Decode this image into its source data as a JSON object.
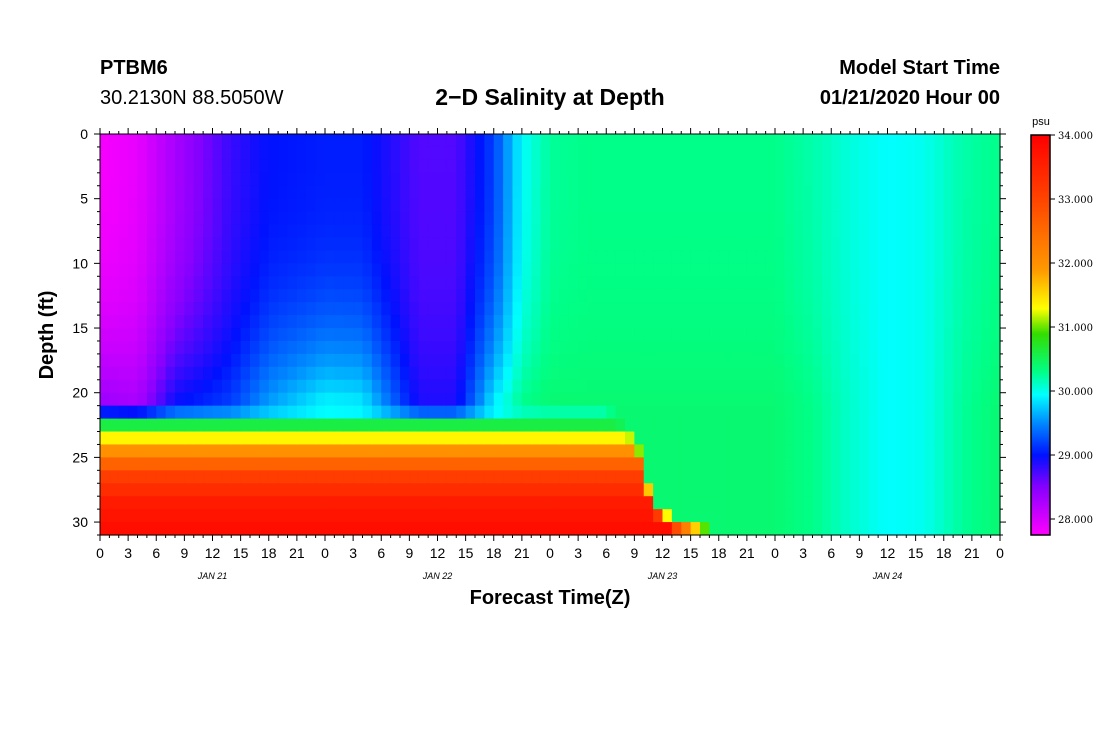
{
  "header": {
    "station": "PTBM6",
    "coordinates": "30.2130N 88.5050W",
    "title": "2−D Salinity at Depth",
    "model_start_label": "Model Start Time",
    "model_start_value": "01/21/2020 Hour 00"
  },
  "chart_data": {
    "type": "heatmap",
    "title": "2−D Salinity at Depth",
    "xlabel": "Forecast Time(Z)",
    "ylabel": "Depth (ft)",
    "x_range_hours": [
      0,
      96
    ],
    "x_tick_labels": [
      "0",
      "3",
      "6",
      "9",
      "12",
      "15",
      "18",
      "21",
      "0",
      "3",
      "6",
      "9",
      "12",
      "15",
      "18",
      "21",
      "0",
      "3",
      "6",
      "9",
      "12",
      "15",
      "18",
      "21",
      "0",
      "3",
      "6",
      "9",
      "12",
      "15",
      "18",
      "21",
      "0"
    ],
    "date_labels": [
      {
        "label": "JAN 21",
        "hour": 12
      },
      {
        "label": "JAN 22",
        "hour": 36
      },
      {
        "label": "JAN 23",
        "hour": 60
      },
      {
        "label": "JAN 24",
        "hour": 84
      }
    ],
    "y_range_ft": [
      0,
      31
    ],
    "y_ticks": [
      0,
      5,
      10,
      15,
      20,
      25,
      30
    ],
    "colorbar": {
      "unit": "psu",
      "range": [
        27.75,
        34.0
      ],
      "tick_labels": [
        "34.000",
        "33.000",
        "32.000",
        "31.000",
        "30.000",
        "29.000",
        "28.000"
      ],
      "tick_values": [
        34,
        33,
        32,
        31,
        30,
        29,
        28
      ],
      "colors": [
        {
          "v": 27.75,
          "c": "#ff00ff"
        },
        {
          "v": 28.5,
          "c": "#8800ff"
        },
        {
          "v": 29.0,
          "c": "#0011ff"
        },
        {
          "v": 29.5,
          "c": "#0088ff"
        },
        {
          "v": 29.95,
          "c": "#00ffff"
        },
        {
          "v": 30.3,
          "c": "#00ff88"
        },
        {
          "v": 30.9,
          "c": "#33dd00"
        },
        {
          "v": 31.3,
          "c": "#ffff00"
        },
        {
          "v": 31.9,
          "c": "#ff9900"
        },
        {
          "v": 33.0,
          "c": "#ff4400"
        },
        {
          "v": 34.0,
          "c": "#ff0000"
        }
      ]
    },
    "surface_profile": {
      "hours": [
        0,
        4,
        8,
        14,
        18,
        24,
        28,
        34,
        38,
        42,
        45,
        48,
        52,
        56,
        60,
        64,
        68,
        72,
        76,
        80,
        84,
        88,
        92,
        96
      ],
      "values": [
        27.8,
        27.9,
        28.3,
        28.8,
        29.0,
        29.05,
        29.05,
        28.7,
        28.7,
        29.2,
        29.95,
        30.25,
        30.3,
        30.3,
        30.3,
        30.3,
        30.3,
        30.3,
        30.2,
        30.05,
        29.95,
        30.0,
        30.2,
        30.3
      ]
    },
    "mid_depth_profile": {
      "hours": [
        0,
        4,
        8,
        14,
        18,
        24,
        28,
        34,
        38,
        42,
        45,
        48,
        52,
        56,
        60,
        64,
        68,
        72,
        76,
        80,
        84,
        88,
        92,
        96
      ],
      "values": [
        28.4,
        28.3,
        29.0,
        29.2,
        29.6,
        29.95,
        29.9,
        28.9,
        28.9,
        29.9,
        30.3,
        30.4,
        30.4,
        30.4,
        30.4,
        30.4,
        30.4,
        30.4,
        30.3,
        30.1,
        29.95,
        30.0,
        30.25,
        30.4
      ]
    },
    "halocline": {
      "cutoff_hours": [
        0,
        20,
        40,
        48,
        54,
        56,
        57,
        58,
        58.5,
        59.5,
        61,
        64,
        67,
        69
      ],
      "cutoff_depth_ft": [
        21,
        21,
        21,
        21,
        21,
        22,
        23,
        25,
        27,
        28.5,
        29.5,
        30.2,
        30.8,
        31
      ],
      "layers": [
        {
          "depth_ft": 21.5,
          "value": 29.95
        },
        {
          "depth_ft": 22.5,
          "value": 30.6
        },
        {
          "depth_ft": 23.5,
          "value": 31.35
        },
        {
          "depth_ft": 24.5,
          "value": 32.0
        },
        {
          "depth_ft": 25.5,
          "value": 32.6
        },
        {
          "depth_ft": 26.5,
          "value": 33.1
        },
        {
          "depth_ft": 28.5,
          "value": 33.6
        },
        {
          "depth_ft": 30.5,
          "value": 33.8
        }
      ]
    }
  }
}
